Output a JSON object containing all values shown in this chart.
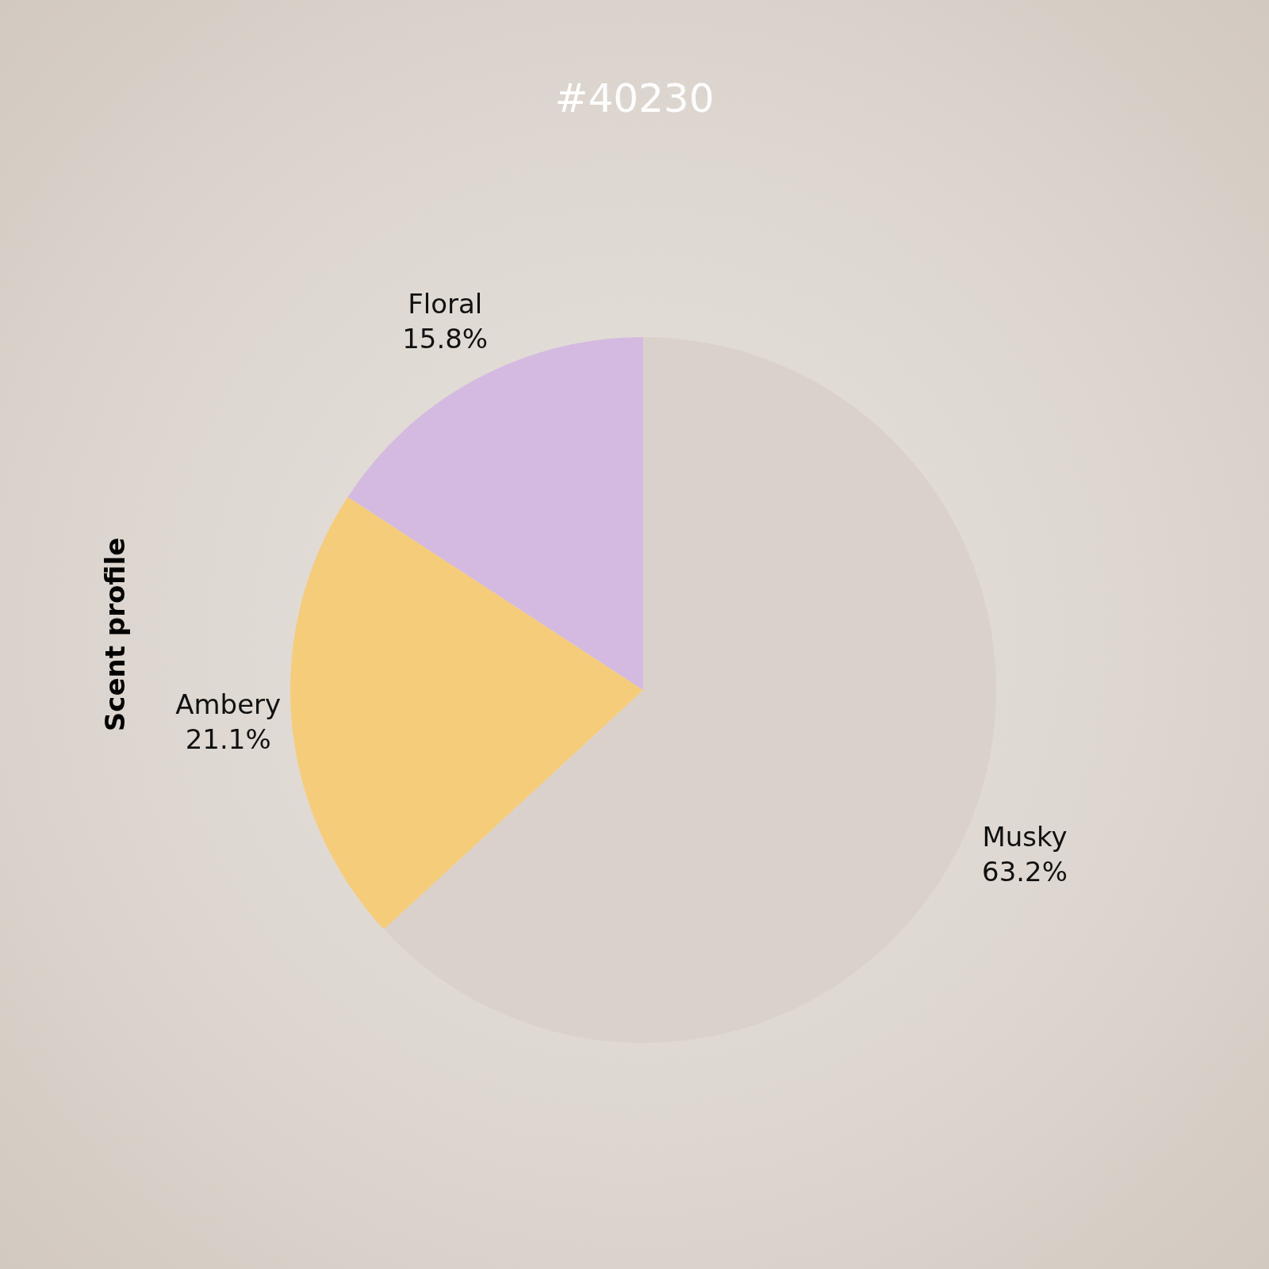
{
  "chart_data": {
    "type": "pie",
    "title": "#40230",
    "ylabel": "Scent profile",
    "categories": [
      "Musky",
      "Ambery",
      "Floral"
    ],
    "values": [
      63.2,
      21.1,
      15.8
    ],
    "colors": [
      "#dbd1cc",
      "#f5cc7a",
      "#d4bae0"
    ],
    "value_labels": [
      "63.2%",
      "21.1%",
      "15.8%"
    ],
    "legend": false
  }
}
